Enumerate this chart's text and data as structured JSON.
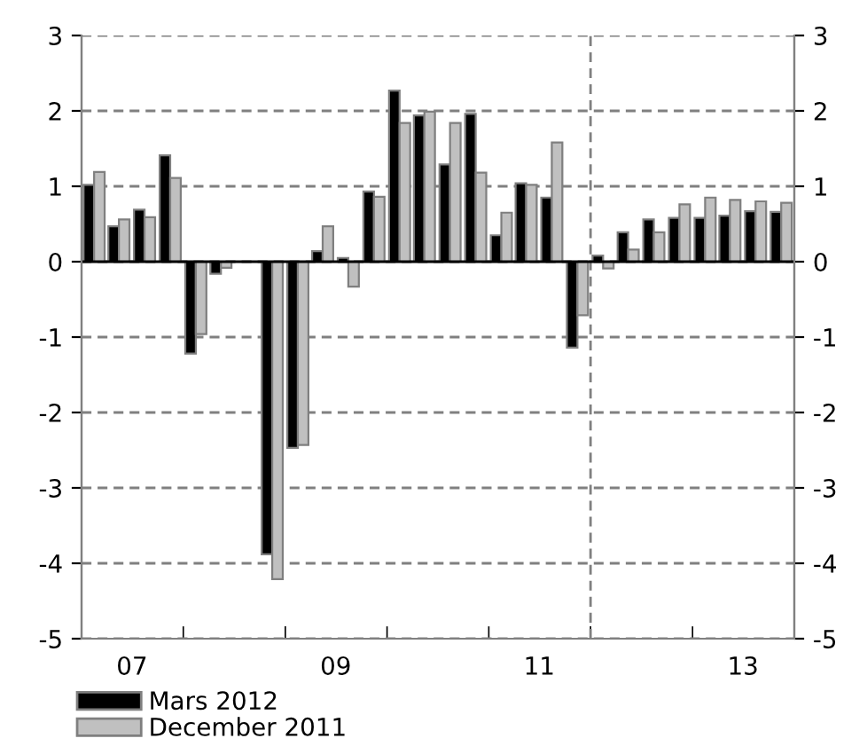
{
  "chart_data": {
    "type": "bar",
    "x": [
      "2007-02-15",
      "2007-05-15",
      "2007-08-15",
      "2007-11-15",
      "2008-02-15",
      "2008-05-15",
      "2008-08-15",
      "2008-11-15",
      "2009-02-15",
      "2009-05-15",
      "2009-08-15",
      "2009-11-15",
      "2010-02-15",
      "2010-05-15",
      "2010-08-15",
      "2010-11-15",
      "2011-02-15",
      "2011-05-15",
      "2011-08-15",
      "2011-11-15",
      "2012-02-15",
      "2012-05-15",
      "2012-08-15",
      "2012-11-15",
      "2013-02-15",
      "2013-05-15",
      "2013-08-15",
      "2013-11-15"
    ],
    "series": [
      {
        "name": "Mars 2012",
        "color": "#000000",
        "values": [
          1.02,
          0.47,
          0.69,
          1.41,
          -1.22,
          -0.16,
          null,
          -3.88,
          -2.47,
          0.14,
          0.05,
          0.93,
          2.27,
          1.94,
          1.29,
          1.96,
          0.35,
          1.04,
          0.85,
          -1.14,
          0.08,
          0.39,
          0.56,
          0.58,
          0.58,
          0.61,
          0.67,
          0.66
        ]
      },
      {
        "name": "December 2011",
        "color": "#c0c0c0",
        "values": [
          1.19,
          0.56,
          0.59,
          1.11,
          -0.96,
          -0.08,
          null,
          -4.21,
          -2.43,
          0.47,
          -0.33,
          0.86,
          1.84,
          1.99,
          1.84,
          1.18,
          0.65,
          1.02,
          1.58,
          -0.71,
          -0.09,
          0.16,
          0.39,
          0.76,
          0.85,
          0.82,
          0.8,
          0.78
        ]
      }
    ],
    "xlim": [
      "2007-01-01",
      "2014-01-01"
    ],
    "xticks": [
      {
        "value": "2007-01-01",
        "label": null
      },
      {
        "value": "2007-07-01",
        "label": "07"
      },
      {
        "value": "2008-01-01",
        "label": null
      },
      {
        "value": "2009-01-01",
        "label": null
      },
      {
        "value": "2009-07-01",
        "label": "09"
      },
      {
        "value": "2010-01-01",
        "label": null
      },
      {
        "value": "2011-01-01",
        "label": null
      },
      {
        "value": "2011-07-01",
        "label": "11"
      },
      {
        "value": "2012-01-01",
        "label": null
      },
      {
        "value": "2013-01-01",
        "label": null
      },
      {
        "value": "2013-07-01",
        "label": "13"
      },
      {
        "value": "2014-01-01",
        "label": null
      }
    ],
    "ylim": [
      -5,
      3
    ],
    "yticks": [
      -5,
      -4,
      -3,
      -2,
      -1,
      0,
      1,
      2,
      3
    ],
    "y2lim": [
      -5,
      3
    ],
    "y2ticks": [
      -5,
      -4,
      -3,
      -2,
      -1,
      0,
      1,
      2,
      3
    ],
    "ref_lines": [
      {
        "axis": "x",
        "value": "2012-01-01",
        "color": "#808080",
        "line_style": "dashed"
      }
    ],
    "grid": "y",
    "legend": "bottom"
  }
}
